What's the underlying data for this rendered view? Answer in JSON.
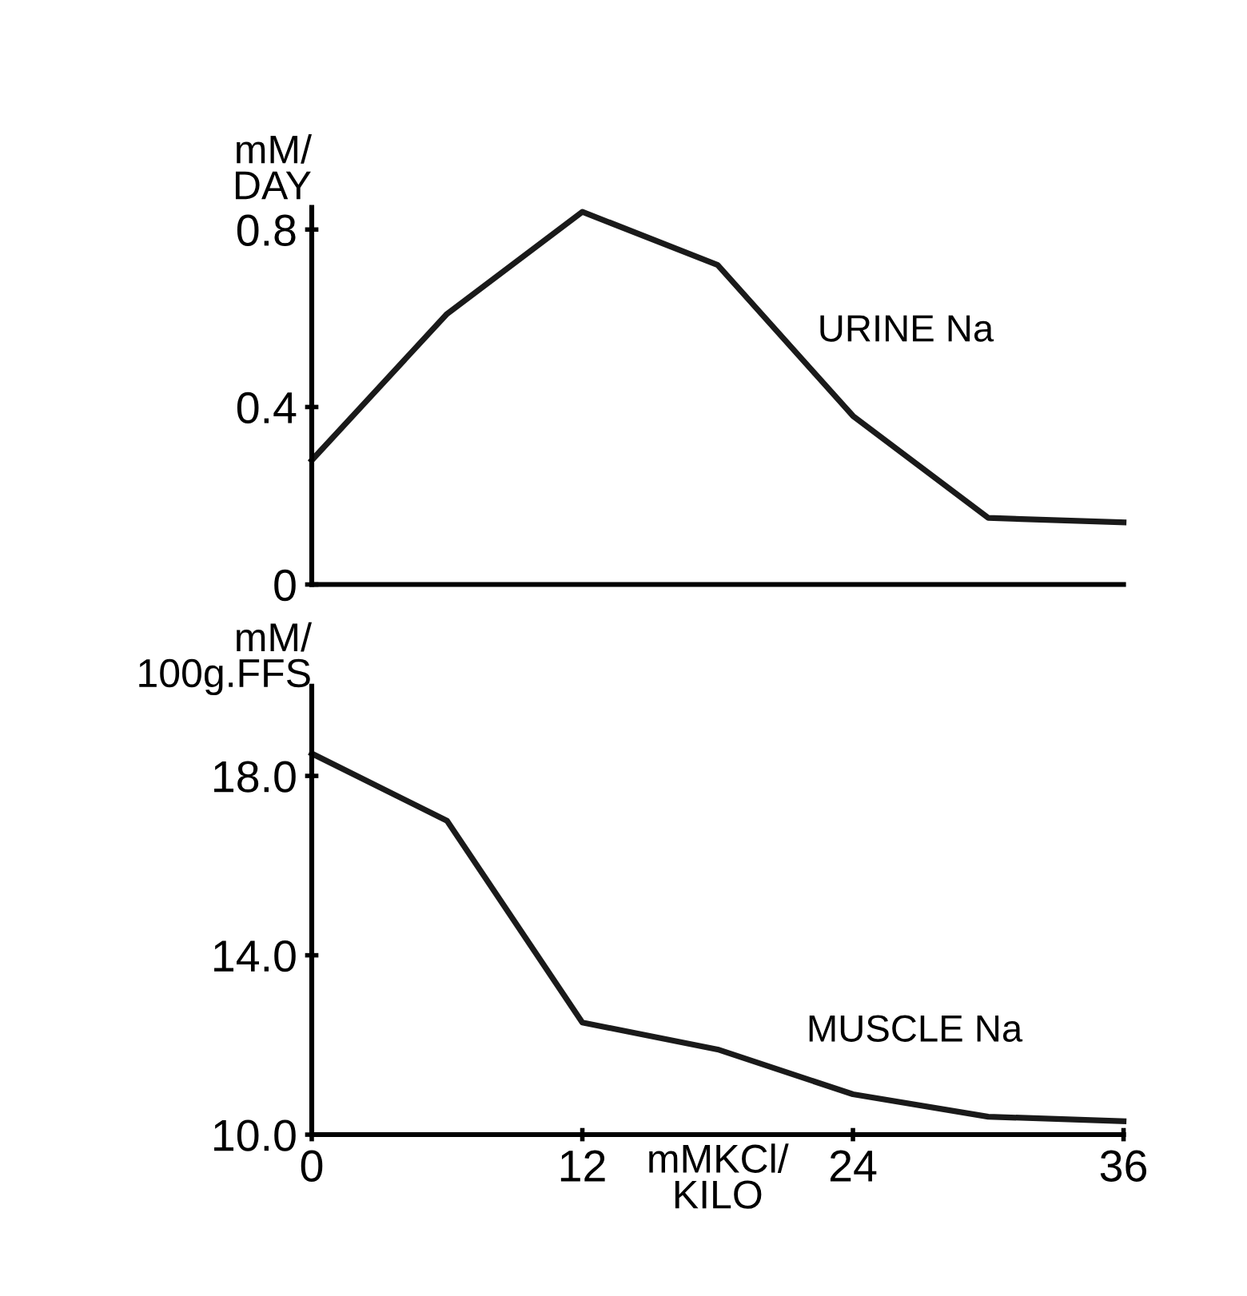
{
  "chart_data": [
    {
      "type": "line",
      "ylabel": "mM/\nDAY",
      "xlim": [
        0,
        36
      ],
      "ylim": [
        0,
        0.85
      ],
      "yticks": [
        {
          "value": 0,
          "label": "0"
        },
        0.4,
        0.8
      ],
      "tick_labels": "y",
      "series": [
        {
          "name": "URINE Na",
          "color": "#1a1a1a",
          "x": [
            0,
            6,
            12,
            18,
            24,
            30,
            36
          ],
          "values": [
            0.28,
            0.61,
            0.84,
            0.72,
            0.38,
            0.15,
            0.14
          ]
        }
      ]
    },
    {
      "type": "line",
      "ylabel": "mM/\n100g.FFS",
      "xlabel": "mMKCl/\nKILO",
      "xlim": [
        0,
        36
      ],
      "xticks": [
        0,
        12,
        24,
        36
      ],
      "ylim": [
        10,
        20
      ],
      "yticks": [
        {
          "value": 10,
          "label": "10.0"
        },
        {
          "value": 14,
          "label": "14.0"
        },
        {
          "value": 18,
          "label": "18.0"
        }
      ],
      "series": [
        {
          "name": "MUSCLE Na",
          "color": "#1a1a1a",
          "x": [
            0,
            6,
            12,
            18,
            24,
            30,
            36
          ],
          "values": [
            18.5,
            17.0,
            12.5,
            11.9,
            10.9,
            10.4,
            10.3
          ]
        }
      ]
    }
  ]
}
